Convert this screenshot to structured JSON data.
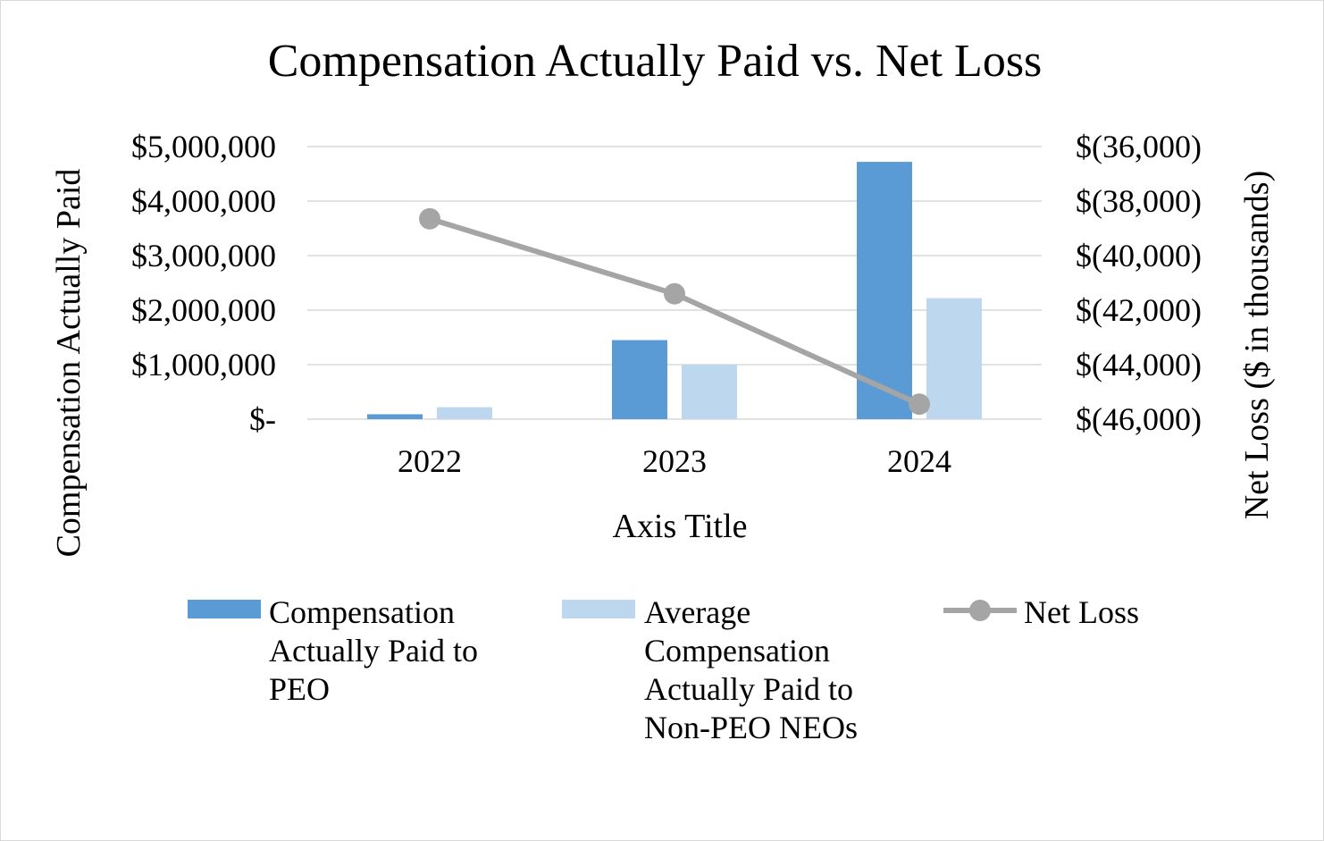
{
  "chart_data": {
    "type": "bar",
    "title": "Compensation Actually Paid vs. Net Loss",
    "xlabel": "Axis Title",
    "ylabel": "Compensation Actually Paid",
    "y2label": "Net Loss ($ in thousands)",
    "categories": [
      "2022",
      "2023",
      "2024"
    ],
    "ylim": [
      0,
      5000000
    ],
    "y2lim": [
      -46000,
      -36000
    ],
    "y_ticks": [
      0,
      1000000,
      2000000,
      3000000,
      4000000,
      5000000
    ],
    "y_tick_labels": [
      "$-",
      "$1,000,000",
      "$2,000,000",
      "$3,000,000",
      "$4,000,000",
      "$5,000,000"
    ],
    "y2_ticks": [
      -46000,
      -44000,
      -42000,
      -40000,
      -38000,
      -36000
    ],
    "y2_tick_labels": [
      "$(46,000)",
      "$(44,000)",
      "$(42,000)",
      "$(40,000)",
      "$(38,000)",
      "$(36,000)"
    ],
    "grid": true,
    "legend_position": "bottom",
    "series": [
      {
        "name": "Compensation Actually Paid to PEO",
        "name_lines": [
          "Compensation",
          "Actually Paid to",
          "PEO"
        ],
        "kind": "bar",
        "axis": "left",
        "color": "#5b9bd5",
        "values": [
          90000,
          1450000,
          4720000
        ]
      },
      {
        "name": "Average Compensation Actually Paid to Non-PEO NEOs",
        "name_lines": [
          "Average",
          "Compensation",
          "Actually Paid to",
          "Non-PEO NEOs"
        ],
        "kind": "bar",
        "axis": "left",
        "color": "#bdd7ee",
        "values": [
          220000,
          1000000,
          2220000
        ]
      },
      {
        "name": "Net Loss",
        "name_lines": [
          "Net Loss"
        ],
        "kind": "line",
        "axis": "right",
        "color": "#a5a5a5",
        "values": [
          -38650,
          -41400,
          -45450
        ]
      }
    ]
  }
}
